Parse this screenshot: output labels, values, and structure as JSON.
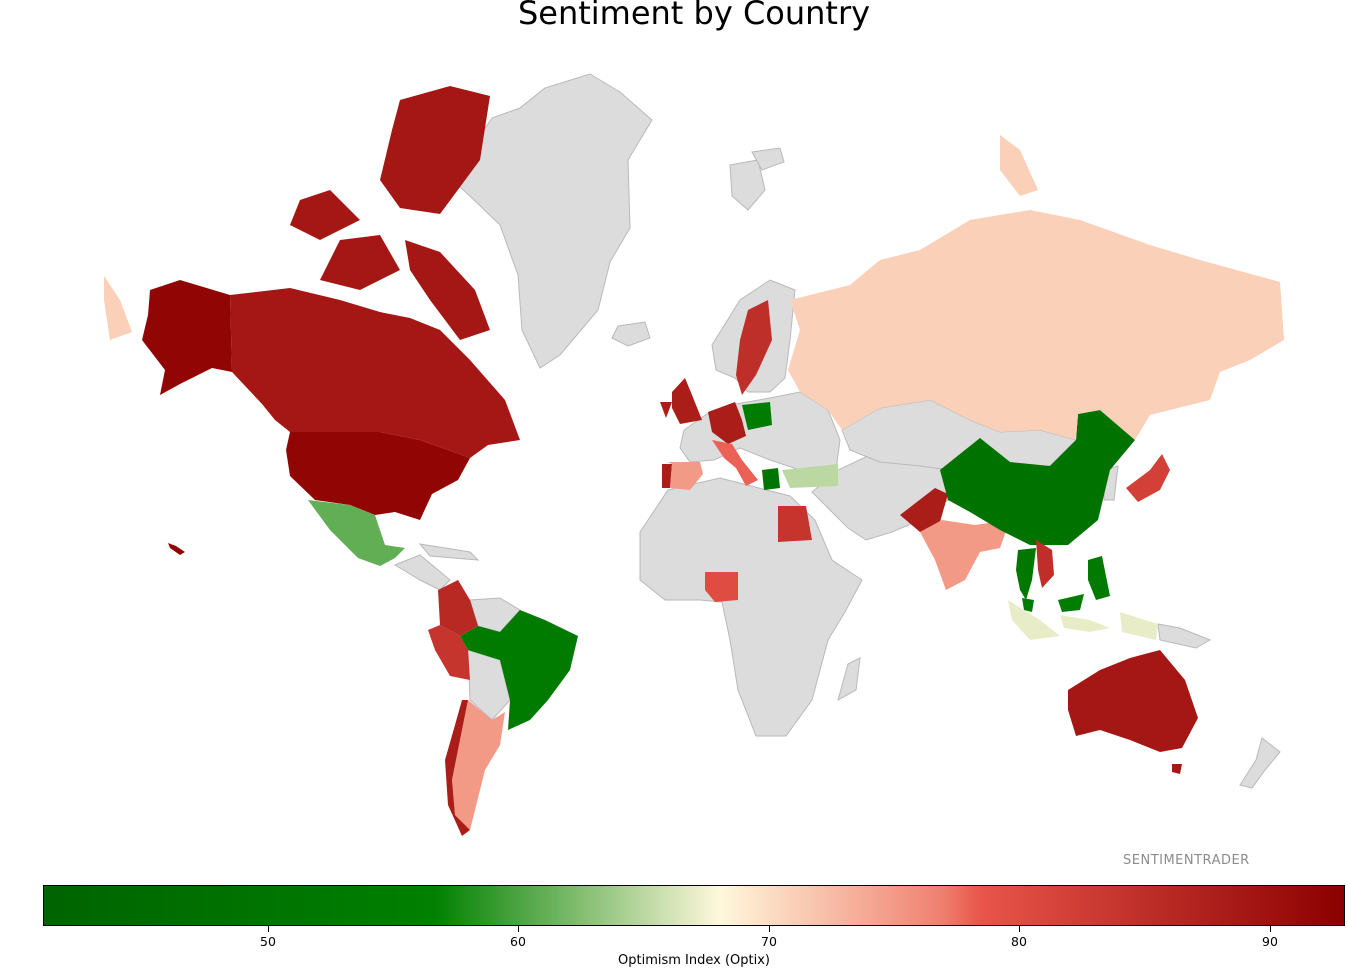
{
  "title": "Sentiment by Country",
  "watermark": "SENTIMENTRADER",
  "colorbar": {
    "label": "Optimism Index (Optix)",
    "min": 41,
    "max": 93,
    "ticks": [
      "50",
      "60",
      "70",
      "80",
      "90"
    ],
    "colors": {
      "no_data": "#dcdcdc",
      "border": "#b9b9bd",
      "scale": [
        "#006400",
        "#008000",
        "#fff8dc",
        "#f08070",
        "#e9554a",
        "#8b0000"
      ]
    }
  },
  "countries": [
    {
      "name": "United States",
      "value": 92
    },
    {
      "name": "Canada",
      "value": 89
    },
    {
      "name": "Mexico",
      "value": 61
    },
    {
      "name": "Brazil",
      "value": 54
    },
    {
      "name": "Argentina",
      "value": 75
    },
    {
      "name": "Chile",
      "value": 88
    },
    {
      "name": "Peru",
      "value": 84
    },
    {
      "name": "Colombia",
      "value": 86
    },
    {
      "name": "United Kingdom",
      "value": 88
    },
    {
      "name": "Spain",
      "value": 75
    },
    {
      "name": "Portugal",
      "value": 88
    },
    {
      "name": "Germany",
      "value": 88
    },
    {
      "name": "Italy",
      "value": 78
    },
    {
      "name": "Poland",
      "value": 55
    },
    {
      "name": "Sweden",
      "value": 85
    },
    {
      "name": "Greece",
      "value": 50
    },
    {
      "name": "Turkey",
      "value": 65
    },
    {
      "name": "Egypt",
      "value": 84
    },
    {
      "name": "Nigeria",
      "value": 80
    },
    {
      "name": "Pakistan",
      "value": 88
    },
    {
      "name": "India",
      "value": 75
    },
    {
      "name": "China",
      "value": 49
    },
    {
      "name": "Japan",
      "value": 82
    },
    {
      "name": "Russia",
      "value": 71
    },
    {
      "name": "Thailand",
      "value": 52
    },
    {
      "name": "Vietnam",
      "value": 85
    },
    {
      "name": "Philippines",
      "value": 53
    },
    {
      "name": "Malaysia",
      "value": 55
    },
    {
      "name": "Indonesia",
      "value": 67
    },
    {
      "name": "Australia",
      "value": 89
    }
  ]
}
